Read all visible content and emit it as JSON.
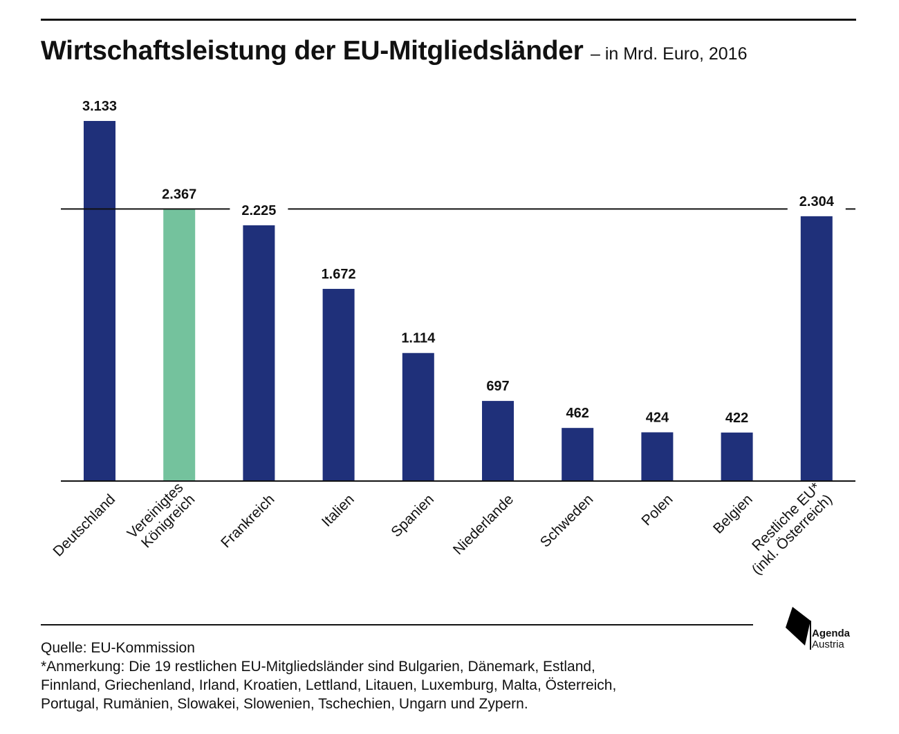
{
  "header": {
    "title": "Wirtschaftsleistung der EU-Mitgliedsländer",
    "subtitle": "– in Mrd. Euro, 2016"
  },
  "chart_data": {
    "type": "bar",
    "categories": [
      [
        "Deutschland"
      ],
      [
        "Vereinigtes",
        "Königreich"
      ],
      [
        "Frankreich"
      ],
      [
        "Italien"
      ],
      [
        "Spanien"
      ],
      [
        "Niederlande"
      ],
      [
        "Schweden"
      ],
      [
        "Polen"
      ],
      [
        "Belgien"
      ],
      [
        "Restliche EU*",
        "(inkl. Österreich)"
      ]
    ],
    "values": [
      3133,
      2367,
      2225,
      1672,
      1114,
      697,
      462,
      424,
      422,
      2304
    ],
    "value_labels": [
      "3.133",
      "2.367",
      "2.225",
      "1.672",
      "1.114",
      "697",
      "462",
      "424",
      "422",
      "2.304"
    ],
    "colors": [
      "#1f307a",
      "#74c29d",
      "#1f307a",
      "#1f307a",
      "#1f307a",
      "#1f307a",
      "#1f307a",
      "#1f307a",
      "#1f307a",
      "#1f307a"
    ],
    "reference_line": 2367,
    "ylim": [
      0,
      3300
    ],
    "xlabel": "",
    "ylabel": "",
    "grid": false,
    "legend": "none"
  },
  "footer": {
    "source": "Quelle: EU-Kommission",
    "note_lines": [
      "*Anmerkung: Die 19 restlichen EU-Mitgliedsländer sind Bulgarien, Dänemark, Estland,",
      "Finnland, Griechenland, Irland, Kroatien, Lettland, Litauen, Luxemburg, Malta, Österreich,",
      "Portugal, Rumänien, Slowakei, Slowenien, Tschechien, Ungarn und Zypern."
    ]
  },
  "logo": {
    "line1": "Agenda",
    "line2": "Austria",
    "icon": "agenda-austria-logo-icon",
    "color": "#000000"
  }
}
